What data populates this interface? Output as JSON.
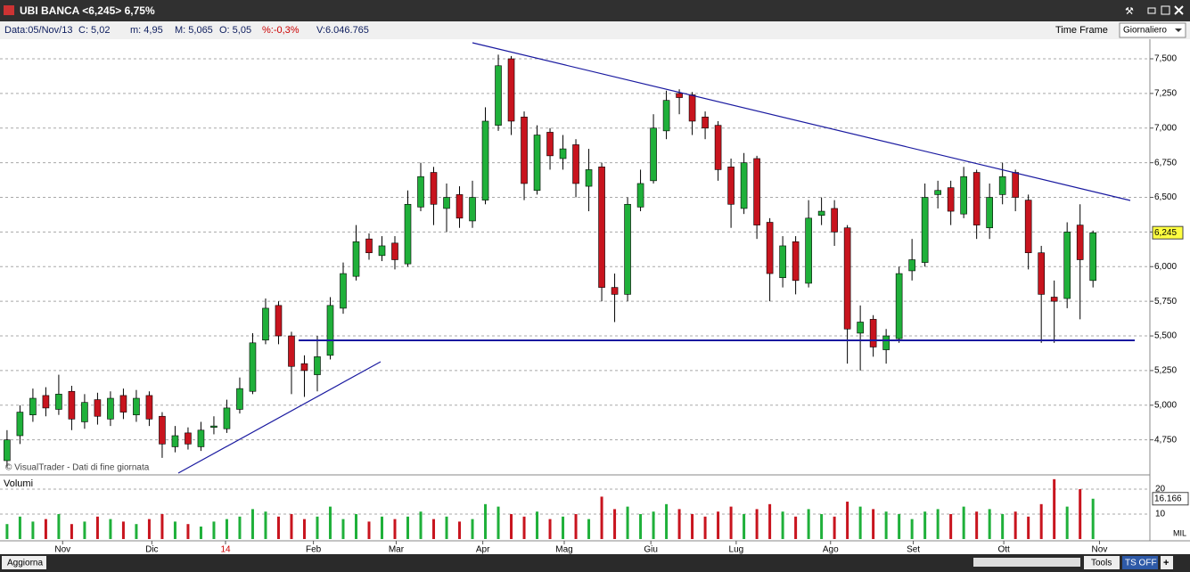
{
  "window": {
    "title": "UBI BANCA <6,245> 6,75%"
  },
  "info_bar": {
    "fields": [
      "Data:05/Nov/13",
      "C: 5,02",
      "m: 4,95",
      "M: 5,065",
      "O: 5,05",
      "%:-0,3%",
      "V:6.046.765"
    ],
    "time_frame_label": "Time Frame",
    "time_frame": "Giornaliero"
  },
  "chart_data": {
    "type": "candlestick",
    "watermark": "© VisualTrader - Dati di fine giornata",
    "up_color": "#1fb03a",
    "down_color": "#c8141e",
    "grid": true,
    "xlim": [
      -0.2,
      88.4
    ],
    "xticks": [
      {
        "value": 4.3,
        "label": "Nov"
      },
      {
        "value": 11.2,
        "label": "Dic"
      },
      {
        "value": 16.9,
        "label": "14"
      },
      {
        "value": 23.7,
        "label": "Feb"
      },
      {
        "value": 30.1,
        "label": "Mar"
      },
      {
        "value": 36.8,
        "label": "Apr"
      },
      {
        "value": 43.1,
        "label": "Mag"
      },
      {
        "value": 49.8,
        "label": "Giu"
      },
      {
        "value": 56.4,
        "label": "Lug"
      },
      {
        "value": 63.7,
        "label": "Ago"
      },
      {
        "value": 70.1,
        "label": "Set"
      },
      {
        "value": 77.1,
        "label": "Ott"
      },
      {
        "value": 84.5,
        "label": "Nov"
      }
    ],
    "ylim": [
      4.51,
      7.635
    ],
    "yticks": [
      {
        "value": 4.75,
        "label": "4,750"
      },
      {
        "value": 5,
        "label": "5,000"
      },
      {
        "value": 5.25,
        "label": "5,250"
      },
      {
        "value": 5.5,
        "label": "5,500"
      },
      {
        "value": 5.75,
        "label": "5,750"
      },
      {
        "value": 6,
        "label": "6,000"
      },
      {
        "value": 6.25,
        "label": "6,250"
      },
      {
        "value": 6.5,
        "label": "6,500"
      },
      {
        "value": 6.75,
        "label": "6,750"
      },
      {
        "value": 7,
        "label": "7,000"
      },
      {
        "value": 7.25,
        "label": "7,250"
      },
      {
        "value": 7.5,
        "label": "7,500"
      }
    ],
    "open": [
      4.6,
      4.78,
      4.93,
      5.07,
      4.97,
      5.1,
      4.88,
      5.04,
      4.9,
      5.07,
      4.93,
      5.07,
      4.92,
      4.7,
      4.8,
      4.7,
      4.84,
      4.83,
      4.97,
      5.1,
      5.47,
      5.72,
      5.5,
      5.3,
      5.22,
      5.36,
      5.7,
      5.93,
      6.2,
      6.08,
      6.17,
      6.02,
      6.43,
      6.68,
      6.42,
      6.52,
      6.33,
      6.48,
      7.02,
      7.5,
      7.08,
      6.55,
      6.97,
      6.78,
      6.88,
      6.58,
      6.72,
      5.85,
      5.8,
      6.43,
      6.62,
      6.98,
      7.25,
      7.24,
      7.08,
      7.02,
      6.72,
      6.42,
      6.78,
      6.32,
      5.92,
      6.18,
      5.88,
      6.37,
      6.42,
      6.28,
      5.52,
      5.62,
      5.4,
      5.48,
      5.97,
      6.03,
      6.52,
      6.57,
      6.38,
      6.68,
      6.28,
      6.52,
      6.68,
      6.48,
      6.1,
      5.78,
      5.77,
      6.3,
      5.9
    ],
    "high": [
      4.82,
      5.0,
      5.12,
      5.13,
      5.22,
      5.14,
      5.08,
      5.09,
      5.1,
      5.12,
      5.11,
      5.1,
      4.95,
      4.85,
      4.84,
      4.88,
      4.92,
      5.04,
      5.2,
      5.52,
      5.77,
      5.75,
      5.53,
      5.36,
      5.5,
      5.78,
      6.03,
      6.3,
      6.24,
      6.22,
      6.22,
      6.55,
      6.75,
      6.72,
      6.6,
      6.58,
      6.62,
      7.15,
      7.53,
      7.52,
      7.12,
      7.02,
      7.0,
      6.95,
      6.92,
      6.85,
      6.75,
      5.95,
      6.5,
      6.7,
      7.1,
      7.27,
      7.28,
      7.26,
      7.12,
      7.05,
      6.78,
      6.82,
      6.8,
      6.35,
      6.22,
      6.22,
      6.48,
      6.5,
      6.48,
      6.3,
      5.72,
      5.65,
      5.55,
      6.0,
      6.2,
      6.6,
      6.62,
      6.62,
      6.72,
      6.7,
      6.6,
      6.75,
      6.7,
      6.52,
      6.15,
      5.9,
      6.32,
      6.45,
      6.26
    ],
    "low": [
      4.55,
      4.72,
      4.88,
      4.92,
      4.93,
      4.82,
      4.83,
      4.86,
      4.85,
      4.9,
      4.88,
      4.85,
      4.62,
      4.66,
      4.68,
      4.67,
      4.79,
      4.8,
      4.94,
      5.08,
      5.44,
      5.44,
      5.08,
      5.06,
      5.1,
      5.33,
      5.66,
      5.9,
      6.05,
      6.04,
      5.98,
      6.0,
      6.4,
      6.3,
      6.25,
      6.28,
      6.28,
      6.45,
      6.98,
      6.95,
      6.48,
      6.52,
      6.7,
      6.7,
      6.5,
      6.4,
      5.75,
      5.6,
      5.75,
      6.4,
      6.6,
      6.92,
      7.1,
      6.95,
      6.92,
      6.62,
      6.28,
      6.38,
      6.2,
      5.75,
      5.85,
      5.8,
      5.85,
      6.3,
      6.15,
      5.3,
      5.25,
      5.35,
      5.3,
      5.45,
      5.9,
      6.0,
      6.42,
      6.3,
      6.35,
      6.2,
      6.2,
      6.45,
      6.4,
      5.98,
      5.45,
      5.45,
      5.7,
      5.62,
      5.85
    ],
    "close": [
      4.75,
      4.95,
      5.05,
      4.98,
      5.08,
      4.9,
      5.02,
      4.92,
      5.05,
      4.95,
      5.05,
      4.9,
      4.72,
      4.78,
      4.72,
      4.82,
      4.85,
      4.98,
      5.12,
      5.45,
      5.7,
      5.5,
      5.28,
      5.25,
      5.35,
      5.72,
      5.95,
      6.18,
      6.1,
      6.15,
      6.05,
      6.45,
      6.65,
      6.45,
      6.5,
      6.35,
      6.5,
      7.05,
      7.45,
      7.05,
      6.6,
      6.95,
      6.8,
      6.85,
      6.6,
      6.7,
      5.85,
      5.8,
      6.45,
      6.6,
      7.0,
      7.2,
      7.22,
      7.05,
      7.0,
      6.7,
      6.45,
      6.75,
      6.3,
      5.95,
      6.15,
      5.9,
      6.35,
      6.4,
      6.25,
      5.55,
      5.6,
      5.42,
      5.5,
      5.95,
      6.05,
      6.5,
      6.55,
      6.4,
      6.65,
      6.3,
      6.5,
      6.65,
      6.5,
      6.1,
      5.8,
      5.75,
      6.25,
      6.05,
      6.245
    ],
    "last_close_label": "6,245",
    "volume": {
      "title": "Volumi",
      "unit": "MIL",
      "ylim": [
        0,
        24.3
      ],
      "yticks": [
        10,
        20
      ],
      "last_value_label": "16.166",
      "values": [
        6,
        9,
        7,
        8,
        10,
        6,
        7,
        9,
        8,
        7,
        6,
        8,
        10,
        7,
        6,
        5,
        7,
        8,
        9,
        12,
        11,
        9,
        10,
        8,
        9,
        13,
        8,
        10,
        7,
        9,
        8,
        9,
        11,
        8,
        9,
        7,
        8,
        14,
        13,
        10,
        9,
        11,
        8,
        9,
        10,
        8,
        17,
        12,
        13,
        10,
        11,
        14,
        12,
        10,
        9,
        11,
        13,
        10,
        12,
        14,
        11,
        9,
        12,
        10,
        9,
        15,
        13,
        12,
        11,
        10,
        8,
        11,
        12,
        10,
        13,
        11,
        12,
        10,
        11,
        9,
        14,
        24,
        13,
        20,
        16.166
      ]
    }
  },
  "toolbar": {
    "update": "Aggiorna",
    "tools": "Tools",
    "ts": "TS OFF",
    "plus": "+"
  }
}
